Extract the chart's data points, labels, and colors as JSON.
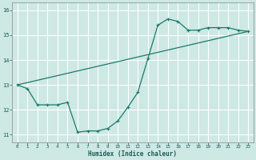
{
  "xlabel": "Humidex (Indice chaleur)",
  "ylabel": "",
  "background_color": "#cee8e4",
  "grid_color": "#ffffff",
  "line_color": "#1a7a6e",
  "xlim": [
    -0.5,
    23.5
  ],
  "ylim": [
    10.7,
    16.3
  ],
  "xticks": [
    0,
    1,
    2,
    3,
    4,
    5,
    6,
    7,
    8,
    9,
    10,
    11,
    12,
    13,
    14,
    15,
    16,
    17,
    18,
    19,
    20,
    21,
    22,
    23
  ],
  "yticks": [
    11,
    12,
    13,
    14,
    15,
    16
  ],
  "line1_x": [
    0,
    1,
    2,
    3,
    4,
    5,
    6,
    7,
    8,
    9,
    10,
    11,
    12,
    13,
    14,
    15,
    16,
    17,
    18,
    19,
    20,
    21,
    22,
    23
  ],
  "line1_y": [
    13.0,
    12.85,
    12.2,
    12.2,
    12.2,
    12.3,
    11.1,
    11.15,
    11.15,
    11.25,
    11.55,
    12.1,
    12.7,
    14.05,
    15.4,
    15.65,
    15.55,
    15.2,
    15.2,
    15.3,
    15.3,
    15.3,
    15.2,
    15.15
  ],
  "line2_x": [
    0,
    23
  ],
  "line2_y": [
    13.0,
    15.15
  ]
}
